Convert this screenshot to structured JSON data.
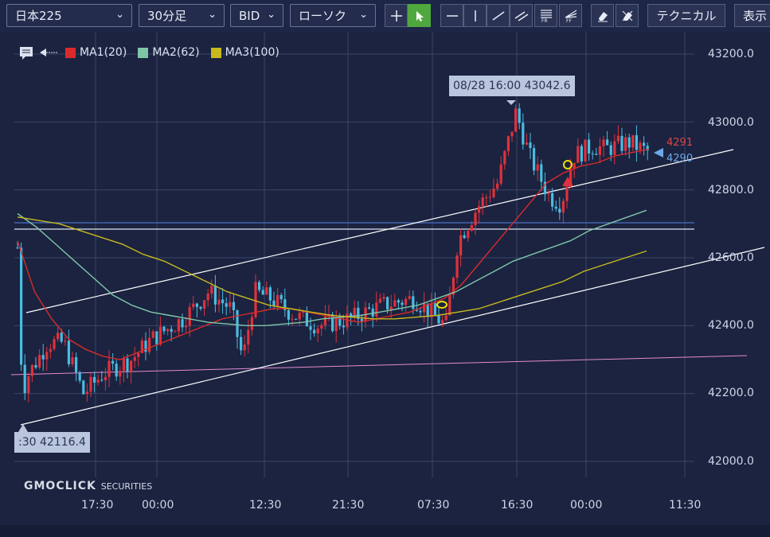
{
  "toolbar": {
    "symbol": "日本225",
    "interval": "30分足",
    "side": "BID",
    "chart_type": "ローソク",
    "indicators_label": "テクニカル",
    "display_label": "表示",
    "tools": [
      "crosshair-icon",
      "pointer-icon",
      "horizontal-line-icon",
      "vertical-line-icon",
      "trend-line-icon",
      "channel-icon",
      "fibonacci-retracement-icon",
      "fibonacci-fan-icon",
      "eraser-icon",
      "delete-drawing-icon"
    ],
    "active_tool": "pointer-icon"
  },
  "legend": {
    "ma1": "MA1(20)",
    "ma2": "MA2(62)",
    "ma3": "MA3(100)",
    "ma1_color": "#d92b2b",
    "ma2_color": "#7fc6a8",
    "ma3_color": "#c8b91e"
  },
  "y_axis": [
    "43200.0",
    "43000.0",
    "42800.0",
    "42600.0",
    "42400.0",
    "42200.0",
    "42000.0"
  ],
  "x_axis": [
    "17:30",
    "00:00",
    "12:30",
    "21:30",
    "07:30",
    "16:30",
    "00:00",
    "11:30"
  ],
  "callouts": {
    "high": "08/28 16:00 43042.6",
    "low": ":30 42116.4"
  },
  "price_tags": {
    "ask": "4291",
    "bid": "4290",
    "ask_color": "#e04646",
    "bid_color": "#6ea8e6"
  },
  "brand": {
    "name": "GMOCLICK",
    "suffix": "SECURITIES"
  },
  "colors": {
    "background": "#1b2340",
    "up_candle": "#e0313b",
    "down_candle": "#4bbbe0",
    "active_tool": "#4fa83e"
  },
  "chart_data": {
    "type": "candlestick",
    "ylim": [
      42000,
      43200
    ],
    "series": [
      {
        "name": "MA1(20)",
        "values": [
          42650,
          42500,
          42420,
          42360,
          42330,
          42310,
          42300,
          42320,
          42340,
          42360,
          42380,
          42400,
          42420,
          42430,
          42440,
          42450,
          42450,
          42440,
          42430,
          42420,
          42410,
          42420,
          42430,
          42440,
          42460,
          42480,
          42520,
          42580,
          42640,
          42700,
          42760,
          42820,
          42850,
          42870,
          42880,
          42900,
          42910,
          42920
        ]
      },
      {
        "name": "MA2(62)",
        "values": [
          42730,
          42690,
          42640,
          42590,
          42540,
          42490,
          42460,
          42440,
          42430,
          42420,
          42410,
          42405,
          42400,
          42400,
          42405,
          42410,
          42420,
          42425,
          42430,
          42440,
          42450,
          42460,
          42480,
          42500,
          42530,
          42560,
          42590,
          42610,
          42630,
          42650,
          42680,
          42700,
          42720,
          42740
        ]
      },
      {
        "name": "MA3(100)",
        "values": [
          42720,
          42710,
          42700,
          42680,
          42660,
          42640,
          42610,
          42590,
          42560,
          42530,
          42500,
          42480,
          42460,
          42450,
          42440,
          42430,
          42425,
          42420,
          42420,
          42425,
          42430,
          42440,
          42450,
          42470,
          42490,
          42510,
          42530,
          42560,
          42580,
          42600,
          42620
        ]
      }
    ],
    "annotations": [
      "08/28 16:00 43042.6",
      ":30 42116.4"
    ]
  }
}
